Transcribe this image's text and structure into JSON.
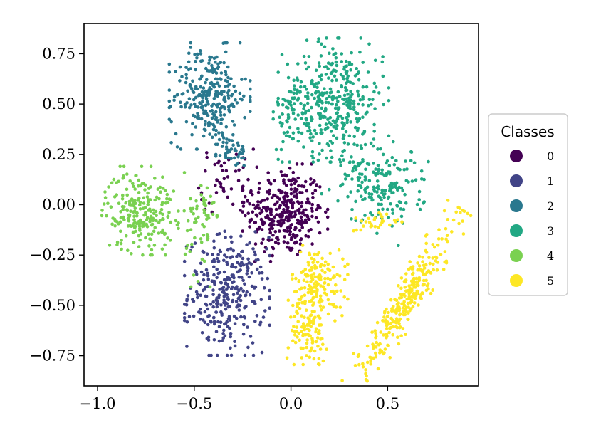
{
  "chart_data": {
    "type": "scatter",
    "title": "",
    "xlabel": "",
    "ylabel": "",
    "xlim": [
      -1.07,
      0.97
    ],
    "ylim": [
      -0.9,
      0.9
    ],
    "x_ticks": [
      -1.0,
      -0.5,
      0.0,
      0.5
    ],
    "x_tick_labels": [
      "−1.0",
      "−0.5",
      "0.0",
      "0.5"
    ],
    "y_ticks": [
      0.75,
      0.5,
      0.25,
      0.0,
      -0.25,
      -0.5,
      -0.75
    ],
    "y_tick_labels": [
      "0.75",
      "0.50",
      "0.25",
      "0.00",
      "−0.25",
      "−0.50",
      "−0.75"
    ],
    "grid": false,
    "legend": {
      "title": "Classes",
      "position": "right",
      "entries": [
        "0",
        "1",
        "2",
        "3",
        "4",
        "5"
      ]
    },
    "colors": [
      "#440154",
      "#414487",
      "#2a788e",
      "#22a884",
      "#7ad151",
      "#fde725"
    ],
    "series": [
      {
        "name": "0",
        "clusters": [
          {
            "cx": -0.03,
            "cy": -0.04,
            "sx": 0.1,
            "sy": 0.11,
            "n": 330,
            "rot": 0
          },
          {
            "cx": -0.33,
            "cy": 0.12,
            "sx": 0.07,
            "sy": 0.08,
            "n": 50,
            "rot": 0
          }
        ]
      },
      {
        "name": "1",
        "clusters": [
          {
            "cx": -0.33,
            "cy": -0.44,
            "sx": 0.1,
            "sy": 0.14,
            "n": 320,
            "rot": 0
          }
        ]
      },
      {
        "name": "2",
        "clusters": [
          {
            "cx": -0.42,
            "cy": 0.54,
            "sx": 0.095,
            "sy": 0.12,
            "n": 280,
            "rot": 0
          },
          {
            "cx": -0.3,
            "cy": 0.26,
            "sx": 0.04,
            "sy": 0.035,
            "n": 40,
            "rot": 0
          }
        ]
      },
      {
        "name": "3",
        "clusters": [
          {
            "cx": 0.22,
            "cy": 0.52,
            "sx": 0.13,
            "sy": 0.14,
            "n": 360,
            "rot": 0
          },
          {
            "cx": 0.46,
            "cy": 0.1,
            "sx": 0.11,
            "sy": 0.1,
            "n": 200,
            "rot": -0.5
          },
          {
            "cx": 0.02,
            "cy": 0.45,
            "sx": 0.06,
            "sy": 0.08,
            "n": 50,
            "rot": 0
          }
        ]
      },
      {
        "name": "4",
        "clusters": [
          {
            "cx": -0.78,
            "cy": -0.03,
            "sx": 0.09,
            "sy": 0.1,
            "n": 230,
            "rot": 0
          },
          {
            "cx": -0.47,
            "cy": -0.1,
            "sx": 0.04,
            "sy": 0.14,
            "n": 60,
            "rot": 0
          }
        ]
      },
      {
        "name": "5",
        "clusters": [
          {
            "cx": 0.14,
            "cy": -0.4,
            "sx": 0.07,
            "sy": 0.09,
            "n": 170,
            "rot": 0
          },
          {
            "cx": 0.09,
            "cy": -0.64,
            "sx": 0.05,
            "sy": 0.07,
            "n": 90,
            "rot": 0
          },
          {
            "cx": 0.6,
            "cy": -0.47,
            "sx": 0.24,
            "sy": 0.04,
            "n": 300,
            "rot": 1.0
          },
          {
            "cx": 0.42,
            "cy": -0.09,
            "sx": 0.07,
            "sy": 0.025,
            "n": 30,
            "rot": 0
          }
        ]
      }
    ]
  }
}
